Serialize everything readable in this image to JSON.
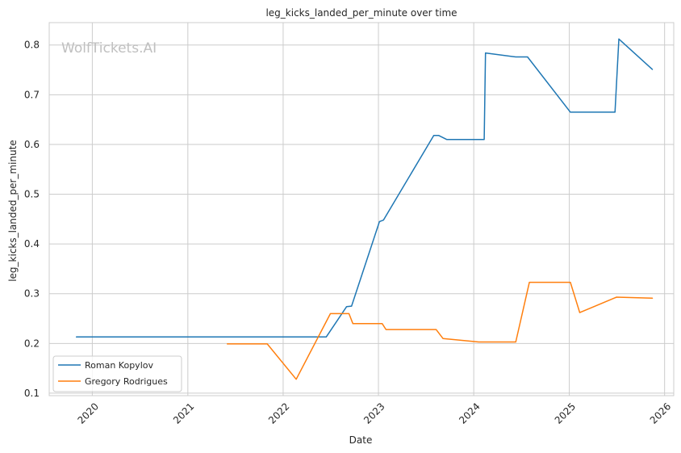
{
  "watermark": "WolfTickets.AI",
  "chart_data": {
    "type": "line",
    "title": "leg_kicks_landed_per_minute over time",
    "xlabel": "Date",
    "ylabel": "leg_kicks_landed_per_minute",
    "x_ticks": [
      "2020",
      "2021",
      "2022",
      "2023",
      "2024",
      "2025",
      "2026"
    ],
    "y_ticks": [
      "0.1",
      "0.2",
      "0.3",
      "0.4",
      "0.5",
      "0.6",
      "0.7",
      "0.8"
    ],
    "xlim": [
      "2019-07-20",
      "2026-02-05"
    ],
    "ylim": [
      0.095,
      0.845
    ],
    "grid": true,
    "legend_position": "lower-left",
    "series": [
      {
        "name": "Roman Kopylov",
        "color": "#1f77b4",
        "points": [
          [
            "2019-11-01",
            0.213
          ],
          [
            "2022-06-15",
            0.213
          ],
          [
            "2022-09-01",
            0.274
          ],
          [
            "2022-09-20",
            0.275
          ],
          [
            "2023-01-05",
            0.445
          ],
          [
            "2023-01-20",
            0.448
          ],
          [
            "2023-08-01",
            0.618
          ],
          [
            "2023-08-20",
            0.618
          ],
          [
            "2023-09-20",
            0.61
          ],
          [
            "2024-02-10",
            0.61
          ],
          [
            "2024-02-15",
            0.784
          ],
          [
            "2024-06-10",
            0.776
          ],
          [
            "2024-07-25",
            0.776
          ],
          [
            "2025-01-05",
            0.665
          ],
          [
            "2025-06-25",
            0.665
          ],
          [
            "2025-07-10",
            0.812
          ],
          [
            "2025-11-15",
            0.751
          ]
        ]
      },
      {
        "name": "Gregory Rodrigues",
        "color": "#ff7f0e",
        "points": [
          [
            "2021-06-01",
            0.199
          ],
          [
            "2021-11-01",
            0.199
          ],
          [
            "2022-02-20",
            0.128
          ],
          [
            "2022-07-01",
            0.26
          ],
          [
            "2022-09-10",
            0.26
          ],
          [
            "2022-09-25",
            0.24
          ],
          [
            "2023-01-15",
            0.24
          ],
          [
            "2023-01-30",
            0.228
          ],
          [
            "2023-08-10",
            0.228
          ],
          [
            "2023-09-05",
            0.21
          ],
          [
            "2024-01-20",
            0.203
          ],
          [
            "2024-06-10",
            0.203
          ],
          [
            "2024-08-01",
            0.323
          ],
          [
            "2025-01-05",
            0.323
          ],
          [
            "2025-02-10",
            0.262
          ],
          [
            "2025-07-01",
            0.293
          ],
          [
            "2025-11-15",
            0.291
          ]
        ]
      }
    ]
  }
}
